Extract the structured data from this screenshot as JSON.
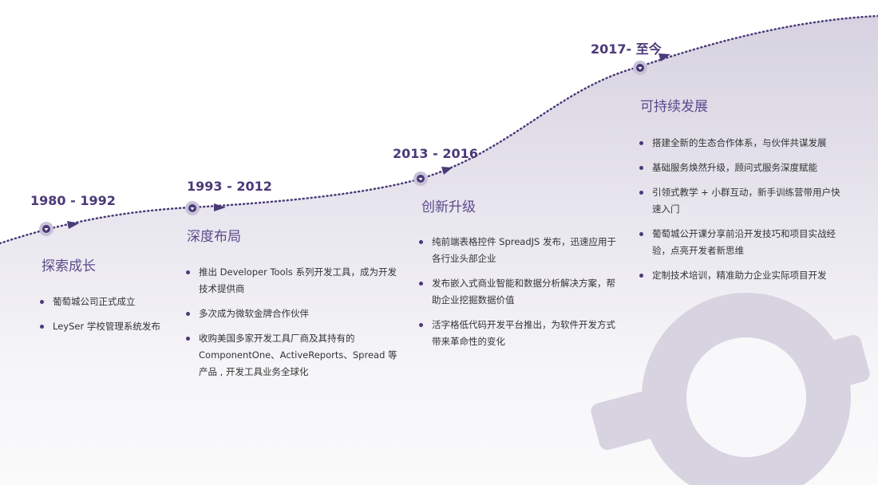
{
  "stages": [
    {
      "period": "1980 - 1992",
      "title": "探索成长",
      "items": [
        "葡萄城公司正式成立",
        "LeySer 学校管理系统发布"
      ]
    },
    {
      "period": "1993 - 2012",
      "title": "深度布局",
      "items": [
        "推出 Developer Tools 系列开发工具，成为开发技术提供商",
        "多次成为微软金牌合作伙伴",
        "收购美国多家开发工具厂商及其持有的 ComponentOne、ActiveReports、Spread 等产品 , 开发工具业务全球化"
      ]
    },
    {
      "period": "2013 - 2016",
      "title": "创新升级",
      "items": [
        "纯前端表格控件 SpreadJS 发布，迅速应用于各行业头部企业",
        "发布嵌入式商业智能和数据分析解决方案，帮助企业挖掘数据价值",
        "活字格低代码开发平台推出，为软件开发方式带来革命性的变化"
      ]
    },
    {
      "period": "2017- 至今",
      "title": "可持续发展",
      "items": [
        "搭建全新的生态合作体系，与伙伴共谋发展",
        "基础服务焕然升级，顾问式服务深度赋能",
        "引领式教学 + 小群互动，新手训练营带用户快速入门",
        "葡萄城公开课分享前沿开发技巧和项目实战经验，点亮开发者新思维",
        "定制技术培训，精准助力企业实际项目开发"
      ]
    }
  ]
}
